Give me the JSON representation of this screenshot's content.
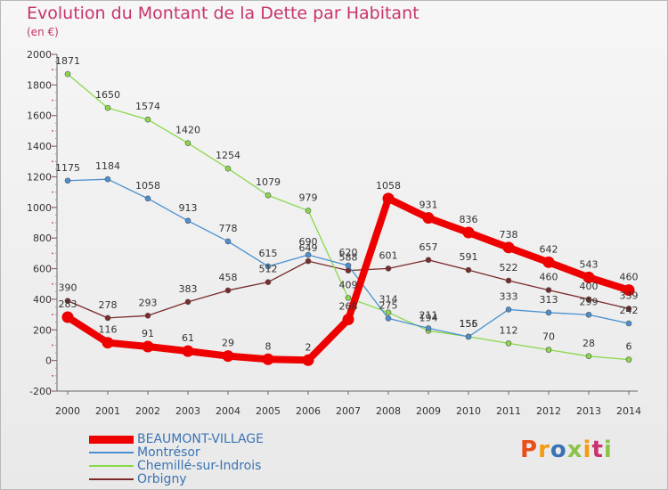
{
  "title": "Evolution du Montant de la Dette par Habitant",
  "unit": "(en €)",
  "logo": {
    "text": "Proxiti",
    "colors": [
      "#e94e1b",
      "#f39c12",
      "#3a73b3",
      "#8bc34a",
      "#f39c12",
      "#c8336e",
      "#8bc34a"
    ]
  },
  "chart_data": {
    "type": "line",
    "categories": [
      "2000",
      "2001",
      "2002",
      "2003",
      "2004",
      "2005",
      "2006",
      "2007",
      "2008",
      "2009",
      "2010",
      "2011",
      "2012",
      "2013",
      "2014"
    ],
    "ylim": [
      -200,
      2000
    ],
    "yticks": [
      -200,
      0,
      200,
      400,
      600,
      800,
      1000,
      1200,
      1400,
      1600,
      1800,
      2000
    ],
    "grid": false,
    "legend_position": "bottom-left",
    "series": [
      {
        "name": "BEAUMONT-VILLAGE",
        "color": "#ee0000",
        "values": [
          283,
          116,
          91,
          61,
          29,
          8,
          2,
          268,
          1058,
          931,
          836,
          738,
          642,
          543,
          460
        ],
        "labels": [
          "283",
          "116",
          "91",
          "61",
          "29",
          "8",
          "2",
          "268",
          "1058",
          "931",
          "836",
          "738",
          "642",
          "543",
          "460"
        ]
      },
      {
        "name": "Montrésor",
        "color": "#4a90d0",
        "values": [
          1175,
          1184,
          1058,
          913,
          778,
          615,
          690,
          620,
          275,
          211,
          155,
          333,
          313,
          299,
          242
        ],
        "labels": [
          "1175",
          "1184",
          "1058",
          "913",
          "778",
          "615",
          "690",
          "620",
          "275",
          "211",
          "155",
          "333",
          "313",
          "299",
          "242"
        ]
      },
      {
        "name": "Chemillé-sur-Indrois",
        "color": "#8ad84a",
        "values": [
          1871,
          1650,
          1574,
          1420,
          1254,
          1079,
          979,
          409,
          314,
          194,
          156,
          112,
          70,
          28,
          6
        ],
        "labels": [
          "1871",
          "1650",
          "1574",
          "1420",
          "1254",
          "1079",
          "979",
          "409",
          "314",
          "194",
          "156",
          "112",
          "70",
          "28",
          "6"
        ]
      },
      {
        "name": "Orbigny",
        "color": "#7a2a2a",
        "values": [
          390,
          278,
          293,
          383,
          458,
          512,
          649,
          588,
          601,
          657,
          591,
          522,
          460,
          400,
          339
        ],
        "labels": [
          "390",
          "278",
          "293",
          "383",
          "458",
          "512",
          "649",
          "588",
          "601",
          "657",
          "591",
          "522",
          "460",
          "400",
          "339"
        ]
      }
    ]
  }
}
